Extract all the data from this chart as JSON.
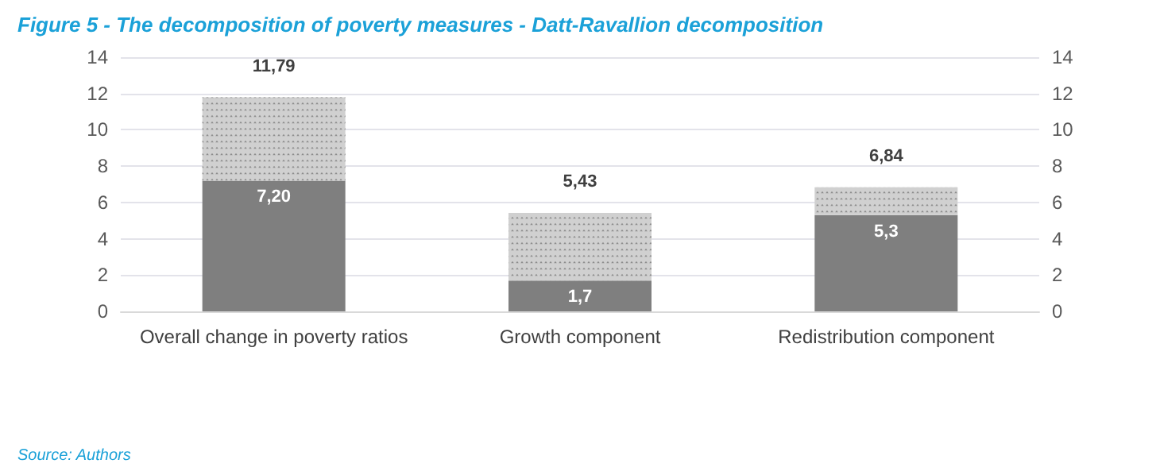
{
  "chart_data": {
    "type": "bar",
    "title": "Figure 5 - The decomposition of poverty measures - Datt-Ravallion decomposition",
    "categories": [
      "Overall change in poverty ratios",
      "Growth component",
      "Redistribution component"
    ],
    "stacked": true,
    "series": [
      {
        "color": "#7f7f7f",
        "values": [
          7.2,
          1.7,
          5.3
        ],
        "value_labels": [
          "7,20",
          "1,7",
          "5,3"
        ]
      },
      {
        "color": "#d0d0d0",
        "values": [
          4.59,
          3.73,
          1.54
        ]
      }
    ],
    "totals": [
      "11,79",
      "5,43",
      "6,84"
    ],
    "ylim": [
      0,
      14
    ],
    "yticks": [
      0,
      2,
      4,
      6,
      8,
      10,
      12,
      14
    ],
    "y2lim": [
      0,
      14
    ],
    "y2ticks": [
      0,
      2,
      4,
      6,
      8,
      10,
      12,
      14
    ],
    "grid": "y",
    "annotations": [
      "Source: Authors"
    ]
  }
}
